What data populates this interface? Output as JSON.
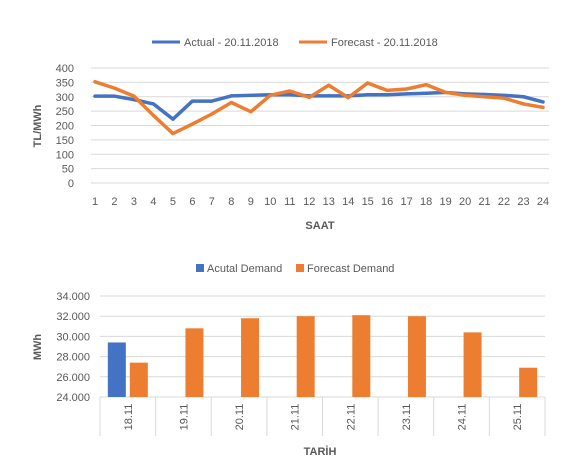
{
  "chart_data": [
    {
      "type": "line",
      "title": "",
      "xlabel": "SAAT",
      "ylabel": "TL/MWh",
      "x": [
        1,
        2,
        3,
        4,
        5,
        6,
        7,
        8,
        9,
        10,
        11,
        12,
        13,
        14,
        15,
        16,
        17,
        18,
        19,
        20,
        21,
        22,
        23,
        24
      ],
      "ylim": [
        0,
        400
      ],
      "yticks": [
        "0",
        "50",
        "100",
        "150",
        "200",
        "250",
        "300",
        "350",
        "400"
      ],
      "grid": true,
      "legend_position": "top",
      "series": [
        {
          "name": "Actual - 20.11.2018",
          "color": "#4472C4",
          "values": [
            302,
            302,
            290,
            275,
            222,
            285,
            285,
            303,
            305,
            307,
            307,
            303,
            303,
            303,
            307,
            307,
            310,
            312,
            315,
            310,
            308,
            305,
            300,
            282
          ]
        },
        {
          "name": "Forecast - 20.11.2018",
          "color": "#ED7D31",
          "values": [
            352,
            330,
            302,
            235,
            172,
            205,
            240,
            280,
            248,
            305,
            320,
            298,
            340,
            297,
            348,
            322,
            327,
            342,
            315,
            305,
            300,
            295,
            275,
            263
          ]
        }
      ]
    },
    {
      "type": "bar",
      "title": "",
      "xlabel": "TARİH",
      "ylabel": "MWh",
      "categories": [
        "18.11",
        "19.11",
        "20.11",
        "21.11",
        "22.11",
        "23.11",
        "24.11",
        "25.11"
      ],
      "ylim": [
        24000,
        34000
      ],
      "yticks": [
        "24.000",
        "26.000",
        "28.000",
        "30.000",
        "32.000",
        "34.000"
      ],
      "grid": true,
      "legend_position": "top",
      "series": [
        {
          "name": "Acutal Demand",
          "color": "#4472C4",
          "values": [
            29400,
            null,
            null,
            null,
            null,
            null,
            null,
            null
          ]
        },
        {
          "name": "Forecast Demand",
          "color": "#ED7D31",
          "values": [
            27400,
            30800,
            31800,
            32000,
            32100,
            32000,
            30400,
            26900
          ]
        }
      ]
    }
  ]
}
